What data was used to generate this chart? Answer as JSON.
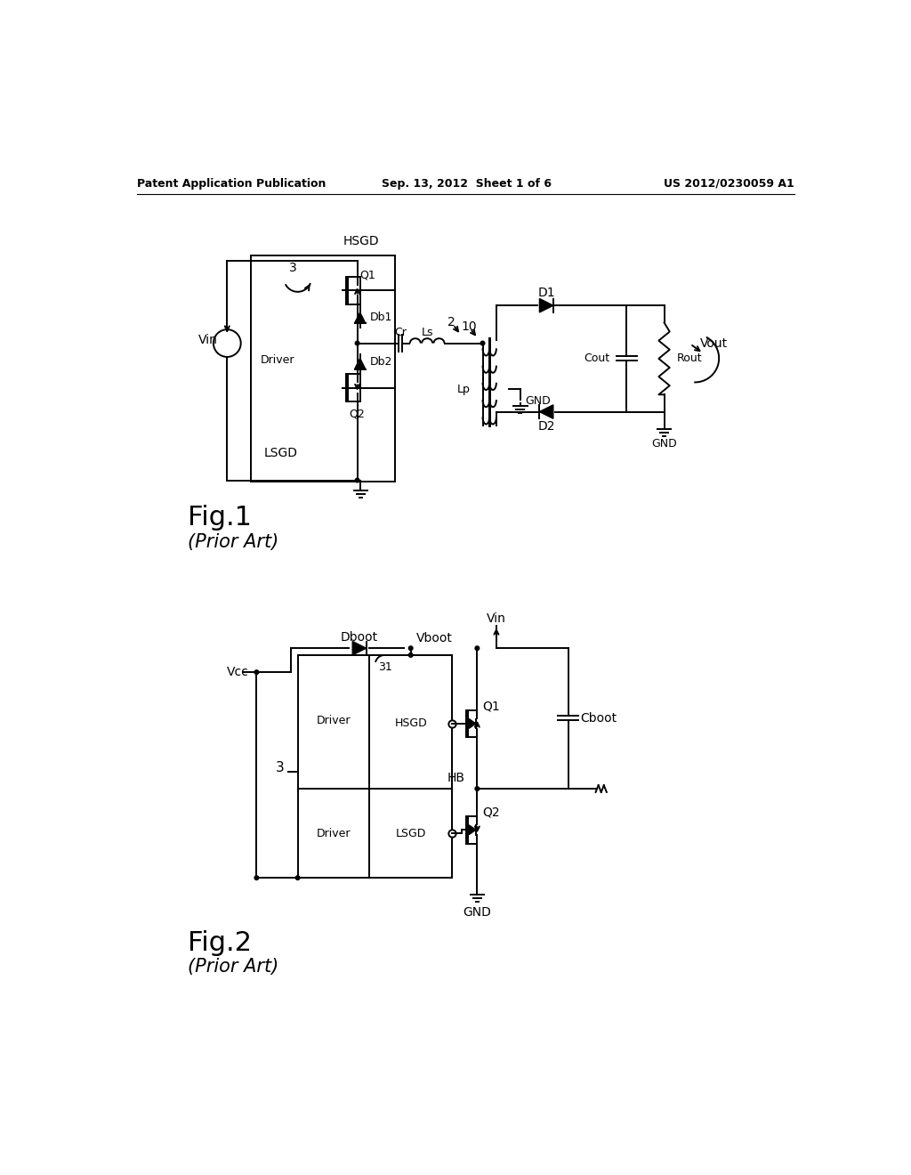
{
  "bg_color": "#ffffff",
  "header_left": "Patent Application Publication",
  "header_center": "Sep. 13, 2012  Sheet 1 of 6",
  "header_right": "US 2012/0230059 A1",
  "fig1_label": "Fig.1",
  "fig1_sublabel": "(Prior Art)",
  "fig2_label": "Fig.2",
  "fig2_sublabel": "(Prior Art)"
}
